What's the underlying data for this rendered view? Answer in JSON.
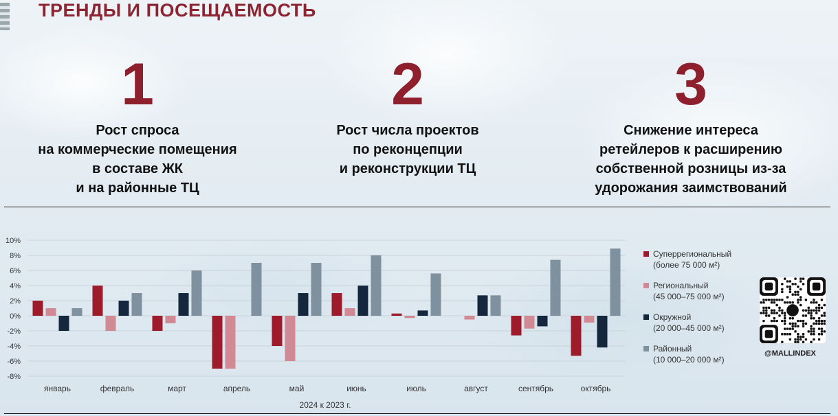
{
  "page": {
    "title": "ТРЕНДЫ И ПОСЕЩАЕМОСТЬ",
    "handle": "@MALLINDEX"
  },
  "trends": [
    {
      "number": "1",
      "text": "Рост спроса\nна коммерческие помещения\nв составе ЖК\nи на районные ТЦ"
    },
    {
      "number": "2",
      "text": "Рост числа проектов\nпо реконцепции\nи реконструкции ТЦ"
    },
    {
      "number": "3",
      "text": "Снижение интереса\nретейлеров к расширению\nсобственной розницы из-за\nудорожания заимствований"
    }
  ],
  "chart_data": {
    "type": "bar",
    "title": "",
    "xlabel": "2024 к 2023 г.",
    "ylabel": "",
    "ylim": [
      -8,
      10
    ],
    "yticks": [
      10,
      8,
      6,
      4,
      2,
      0,
      -2,
      -4,
      -6,
      -8
    ],
    "ytick_suffix": "%",
    "grid": true,
    "legend_position": "right",
    "categories": [
      "январь",
      "февраль",
      "март",
      "апрель",
      "май",
      "июнь",
      "июль",
      "август",
      "сентябрь",
      "октябрь"
    ],
    "series": [
      {
        "name": "Суперрегиональный",
        "subtitle": "(более 75 000 м²)",
        "color": "#9e1b2c",
        "values": [
          2,
          4,
          -2,
          -7,
          -4,
          3,
          0.3,
          0,
          -2.6,
          -5.3
        ]
      },
      {
        "name": "Региональный",
        "subtitle": "(45 000–75 000 м²)",
        "color": "#d18a93",
        "values": [
          1,
          -2,
          -1,
          -7,
          -6,
          1,
          -0.3,
          -0.5,
          -1.7,
          -0.9
        ]
      },
      {
        "name": "Окружной",
        "subtitle": "(20 000–45 000 м²)",
        "color": "#15273d",
        "values": [
          -2,
          2,
          3,
          0,
          3,
          4,
          0.7,
          2.7,
          -1.4,
          -4.2
        ]
      },
      {
        "name": "Районный",
        "subtitle": "(10 000–20 000 м²)",
        "color": "#7f909e",
        "values": [
          1,
          3,
          6,
          7,
          7,
          8,
          5.6,
          2.7,
          7.4,
          8.9
        ]
      }
    ]
  }
}
